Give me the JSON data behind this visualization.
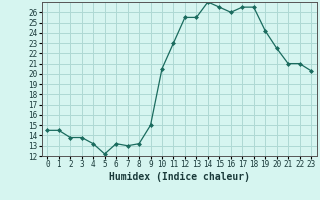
{
  "x": [
    0,
    1,
    2,
    3,
    4,
    5,
    6,
    7,
    8,
    9,
    10,
    11,
    12,
    13,
    14,
    15,
    16,
    17,
    18,
    19,
    20,
    21,
    22,
    23
  ],
  "y": [
    14.5,
    14.5,
    13.8,
    13.8,
    13.2,
    12.2,
    13.2,
    13.0,
    13.2,
    15.0,
    20.5,
    23.0,
    25.5,
    25.5,
    27.0,
    26.5,
    26.0,
    26.5,
    26.5,
    24.2,
    22.5,
    21.0,
    21.0,
    20.3
  ],
  "line_color": "#1a6b5e",
  "marker": "D",
  "marker_size": 2.0,
  "bg_color": "#d6f5f0",
  "grid_color": "#aed9d4",
  "xlabel": "Humidex (Indice chaleur)",
  "xlim": [
    -0.5,
    23.5
  ],
  "ylim": [
    12,
    27
  ],
  "yticks": [
    12,
    13,
    14,
    15,
    16,
    17,
    18,
    19,
    20,
    21,
    22,
    23,
    24,
    25,
    26
  ],
  "xticks": [
    0,
    1,
    2,
    3,
    4,
    5,
    6,
    7,
    8,
    9,
    10,
    11,
    12,
    13,
    14,
    15,
    16,
    17,
    18,
    19,
    20,
    21,
    22,
    23
  ],
  "tick_fontsize": 5.5,
  "xlabel_fontsize": 7.0,
  "linewidth": 0.9
}
